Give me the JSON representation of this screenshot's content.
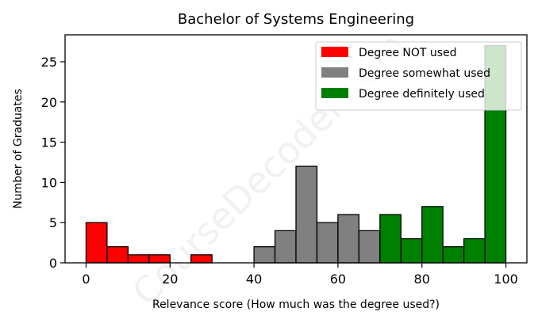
{
  "chart_data": {
    "type": "bar",
    "title": "Bachelor of Systems Engineering",
    "xlabel": "Relevance score (How much was the degree used?)",
    "ylabel": "Number of Graduates",
    "xlim": [
      -5,
      105
    ],
    "ylim": [
      0,
      28.35
    ],
    "xticks": [
      0,
      20,
      40,
      60,
      80,
      100
    ],
    "yticks": [
      0,
      5,
      10,
      15,
      20,
      25
    ],
    "bin_width": 5,
    "grid": false,
    "legend_position": "top-right",
    "series": [
      {
        "name": "Degree NOT used",
        "color": "#ff0000",
        "bins": [
          {
            "start": 0,
            "end": 5,
            "count": 5
          },
          {
            "start": 5,
            "end": 10,
            "count": 2
          },
          {
            "start": 10,
            "end": 15,
            "count": 1
          },
          {
            "start": 15,
            "end": 20,
            "count": 1
          },
          {
            "start": 20,
            "end": 25,
            "count": 0
          },
          {
            "start": 25,
            "end": 30,
            "count": 1
          }
        ]
      },
      {
        "name": "Degree somewhat used",
        "color": "#808080",
        "bins": [
          {
            "start": 40,
            "end": 45,
            "count": 2
          },
          {
            "start": 45,
            "end": 50,
            "count": 4
          },
          {
            "start": 50,
            "end": 55,
            "count": 12
          },
          {
            "start": 55,
            "end": 60,
            "count": 5
          },
          {
            "start": 60,
            "end": 65,
            "count": 6
          },
          {
            "start": 65,
            "end": 70,
            "count": 4
          }
        ]
      },
      {
        "name": "Degree definitely used",
        "color": "#008000",
        "bins": [
          {
            "start": 70,
            "end": 75,
            "count": 6
          },
          {
            "start": 75,
            "end": 80,
            "count": 3
          },
          {
            "start": 80,
            "end": 85,
            "count": 7
          },
          {
            "start": 85,
            "end": 90,
            "count": 2
          },
          {
            "start": 90,
            "end": 95,
            "count": 3
          },
          {
            "start": 95,
            "end": 100,
            "count": 27
          }
        ]
      }
    ],
    "watermark": "CourseDecoder.com"
  }
}
